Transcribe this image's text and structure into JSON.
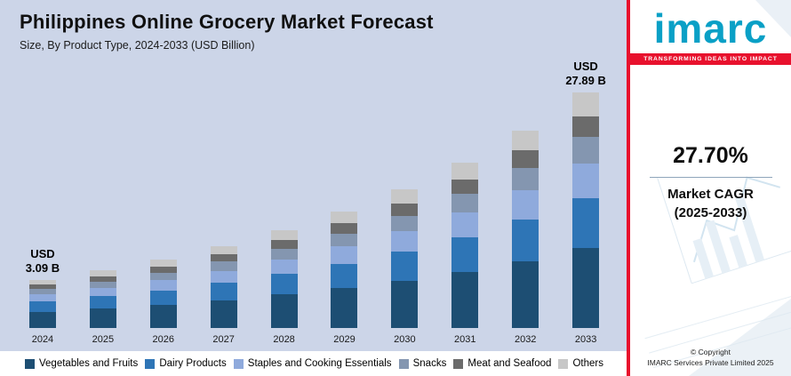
{
  "colors": {
    "chart_bg": "#ccd5e8",
    "accent_red": "#e8112d",
    "logo_teal": "#0aa0c6"
  },
  "header": {
    "title": "Philippines Online Grocery Market Forecast",
    "subtitle": "Size, By Product Type, 2024-2033 (USD Billion)"
  },
  "chart_data": {
    "type": "bar",
    "stacked": true,
    "unit": "USD Billion",
    "title": "Philippines Online Grocery Market Forecast",
    "subtitle": "Size, By Product Type, 2024-2033 (USD Billion)",
    "categories": [
      "2024",
      "2025",
      "2026",
      "2027",
      "2028",
      "2029",
      "2030",
      "2031",
      "2032",
      "2033"
    ],
    "totals": [
      3.09,
      3.95,
      5.04,
      6.43,
      8.21,
      10.49,
      13.39,
      17.1,
      21.84,
      27.89
    ],
    "series": [
      {
        "name": "Vegetables and Fruits",
        "color": "#1d4e73",
        "values": [
          1.05,
          1.34,
          1.71,
          2.19,
          2.79,
          3.57,
          4.55,
          5.81,
          7.43,
          9.48
        ]
      },
      {
        "name": "Dairy Products",
        "color": "#2e75b6",
        "values": [
          0.65,
          0.83,
          1.06,
          1.35,
          1.72,
          2.2,
          2.81,
          3.59,
          4.59,
          5.86
        ]
      },
      {
        "name": "Staples and Cooking Essentials",
        "color": "#8faadc",
        "values": [
          0.46,
          0.59,
          0.76,
          0.96,
          1.23,
          1.57,
          2.01,
          2.57,
          3.28,
          4.18
        ]
      },
      {
        "name": "Snacks",
        "color": "#8496b0",
        "values": [
          0.34,
          0.43,
          0.55,
          0.71,
          0.9,
          1.15,
          1.47,
          1.88,
          2.4,
          3.07
        ]
      },
      {
        "name": "Meat and Seafood",
        "color": "#6b6b6b",
        "values": [
          0.28,
          0.36,
          0.45,
          0.58,
          0.74,
          0.94,
          1.21,
          1.54,
          1.97,
          2.51
        ]
      },
      {
        "name": "Others",
        "color": "#c7c7c7",
        "values": [
          0.31,
          0.4,
          0.5,
          0.64,
          0.82,
          1.05,
          1.34,
          1.71,
          2.18,
          2.79
        ]
      }
    ],
    "annotations": [
      {
        "category": "2024",
        "line1": "USD",
        "line2": "3.09 B"
      },
      {
        "category": "2033",
        "line1": "USD",
        "line2": "27.89 B"
      }
    ],
    "legend_position": "bottom",
    "grid": false,
    "ylim": [
      0,
      27.89
    ]
  },
  "sidebar": {
    "logo_text": "imarc",
    "tagline": "TRANSFORMING IDEAS INTO IMPACT",
    "cagr_value": "27.70%",
    "cagr_label": "Market CAGR",
    "cagr_period": "(2025-2033)",
    "copyright_line1": "© Copyright",
    "copyright_line2": "IMARC Services Private Limited 2025"
  }
}
